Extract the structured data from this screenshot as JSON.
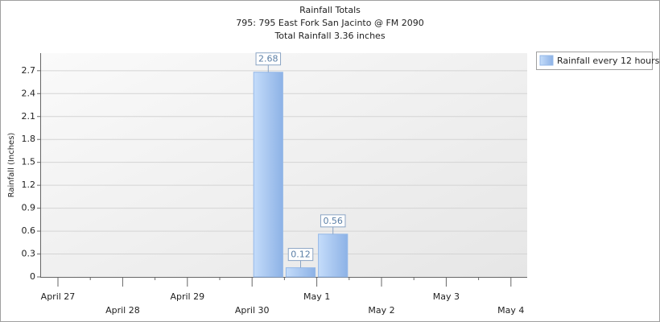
{
  "chart_data": {
    "type": "bar",
    "title": "Rainfall Totals",
    "subtitle": "795: 795 East Fork San Jacinto @ FM 2090",
    "annotation": "Total Rainfall 3.36 inches",
    "y_label": "Rainfall (Inches)",
    "categories": [
      "April 27",
      null,
      "April 28",
      null,
      "April 29",
      null,
      "April 30",
      null,
      "May 1",
      null,
      "May 2",
      null,
      "May 3",
      null,
      "May 4",
      null
    ],
    "series": [
      {
        "name": "Rainfall every 12 hours",
        "color": "#94b8e8",
        "values": [
          null,
          null,
          null,
          null,
          null,
          null,
          2.68,
          0.12,
          0.56,
          null,
          null,
          null,
          null,
          null,
          null,
          null
        ]
      }
    ],
    "ylim": [
      0,
      2.93
    ],
    "yticks": [
      0,
      0.3,
      0.6,
      0.9,
      1.2,
      1.5,
      1.8,
      2.1,
      2.4,
      2.7
    ],
    "grid": true,
    "legend": "right"
  }
}
